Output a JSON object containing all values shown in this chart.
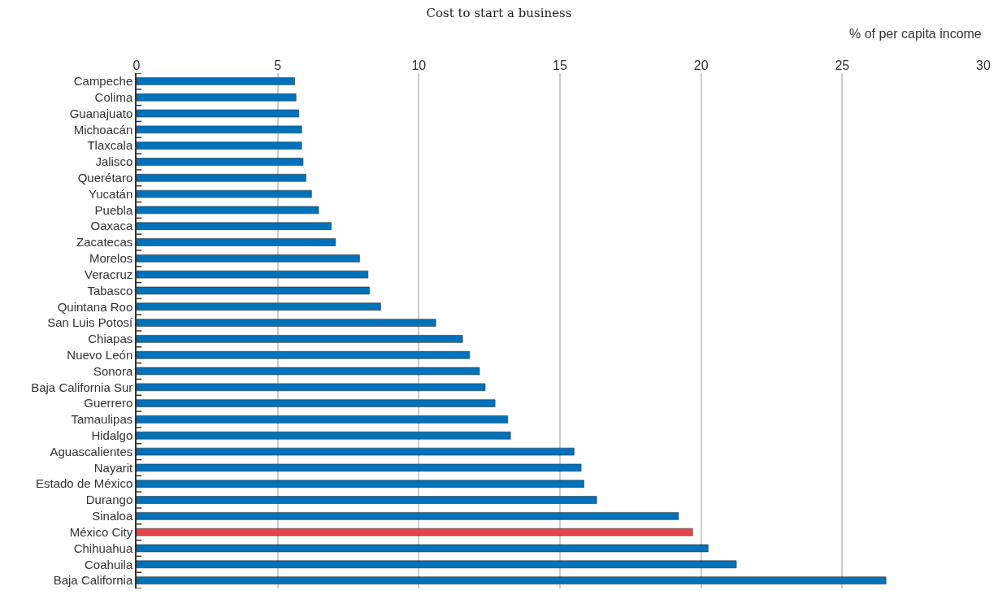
{
  "chart_data": {
    "type": "bar",
    "orientation": "horizontal",
    "title": "Cost to start a business",
    "xlabel": "% of per capita income",
    "categories": [
      "Campeche",
      "Colima",
      "Guanajuato",
      "Michoacán",
      "Tlaxcala",
      "Jalisco",
      "Querétaro",
      "Yucatán",
      "Puebla",
      "Oaxaca",
      "Zacatecas",
      "Morelos",
      "Veracruz",
      "Tabasco",
      "Quintana Roo",
      "San Luis Potosí",
      "Chiapas",
      "Nuevo León",
      "Sonora",
      "Baja California Sur",
      "Guerrero",
      "Tamaulipas",
      "Hidalgo",
      "Aguascalientes",
      "Nayarit",
      "Estado de México",
      "Durango",
      "Sinaloa",
      "México City",
      "Chihuahua",
      "Coahuila",
      "Baja California"
    ],
    "values": [
      5.6,
      5.65,
      5.75,
      5.85,
      5.85,
      5.9,
      6.0,
      6.2,
      6.45,
      6.9,
      7.05,
      7.9,
      8.2,
      8.25,
      8.65,
      10.6,
      11.55,
      11.8,
      12.15,
      12.35,
      12.7,
      13.15,
      13.25,
      15.5,
      15.75,
      15.85,
      16.3,
      19.2,
      19.7,
      20.25,
      21.25,
      26.55
    ],
    "colors": [
      "#0072bb",
      "#0072bb",
      "#0072bb",
      "#0072bb",
      "#0072bb",
      "#0072bb",
      "#0072bb",
      "#0072bb",
      "#0072bb",
      "#0072bb",
      "#0072bb",
      "#0072bb",
      "#0072bb",
      "#0072bb",
      "#0072bb",
      "#0072bb",
      "#0072bb",
      "#0072bb",
      "#0072bb",
      "#0072bb",
      "#0072bb",
      "#0072bb",
      "#0072bb",
      "#0072bb",
      "#0072bb",
      "#0072bb",
      "#0072bb",
      "#0072bb",
      "#e8434b",
      "#0072bb",
      "#0072bb",
      "#0072bb"
    ],
    "xlim": [
      0,
      30
    ],
    "xticks": [
      0,
      5,
      10,
      15,
      20,
      25,
      30
    ],
    "grid": "x",
    "legend": false
  }
}
